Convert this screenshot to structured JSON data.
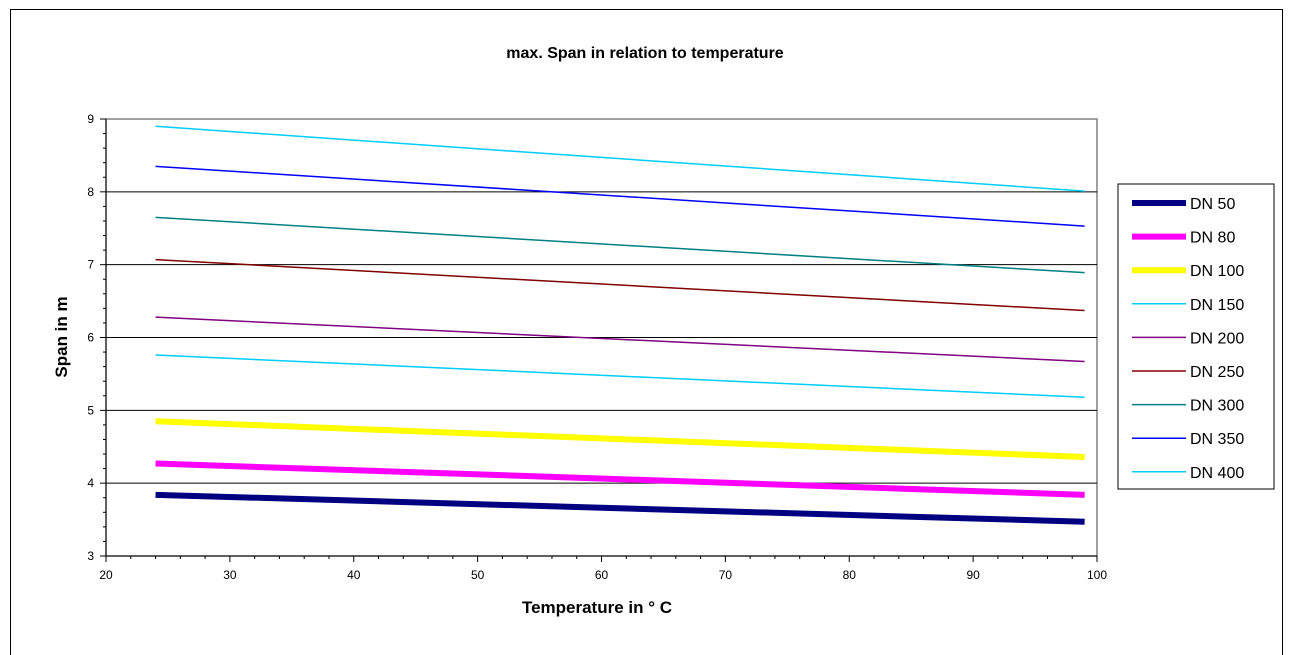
{
  "chart_data": {
    "type": "line",
    "title": "max. Span in relation to temperature",
    "xlabel": "Temperature in  ° C",
    "ylabel": "Span in m",
    "xlim": [
      20,
      100
    ],
    "ylim": [
      3,
      9
    ],
    "xticks": [
      20,
      30,
      40,
      50,
      60,
      70,
      80,
      90,
      100
    ],
    "yticks": [
      3,
      4,
      5,
      6,
      7,
      8,
      9
    ],
    "grid": "horizontal",
    "legend": "right",
    "series": [
      {
        "name": "DN 50",
        "color": "#000080",
        "x": [
          24,
          99
        ],
        "y": [
          3.84,
          3.47
        ]
      },
      {
        "name": "DN 80",
        "color": "#ff00ff",
        "x": [
          24,
          99
        ],
        "y": [
          4.27,
          3.84
        ]
      },
      {
        "name": "DN 100",
        "color": "#ffff00",
        "x": [
          24,
          99
        ],
        "y": [
          4.85,
          4.36
        ]
      },
      {
        "name": "DN 150",
        "color": "#00ccff",
        "x": [
          24,
          99
        ],
        "y": [
          5.76,
          5.18
        ]
      },
      {
        "name": "DN 200",
        "color": "#800080",
        "x": [
          24,
          99
        ],
        "y": [
          6.28,
          5.67
        ]
      },
      {
        "name": "DN 250",
        "color": "#800000",
        "x": [
          24,
          99
        ],
        "y": [
          7.07,
          6.37
        ]
      },
      {
        "name": "DN 300",
        "color": "#008080",
        "x": [
          24,
          99
        ],
        "y": [
          7.65,
          6.89
        ]
      },
      {
        "name": "DN 350",
        "color": "#0000ff",
        "x": [
          24,
          99
        ],
        "y": [
          8.35,
          7.53
        ]
      },
      {
        "name": "DN 400",
        "color": "#00ccff",
        "x": [
          24,
          99
        ],
        "y": [
          8.9,
          8.01
        ]
      }
    ]
  }
}
